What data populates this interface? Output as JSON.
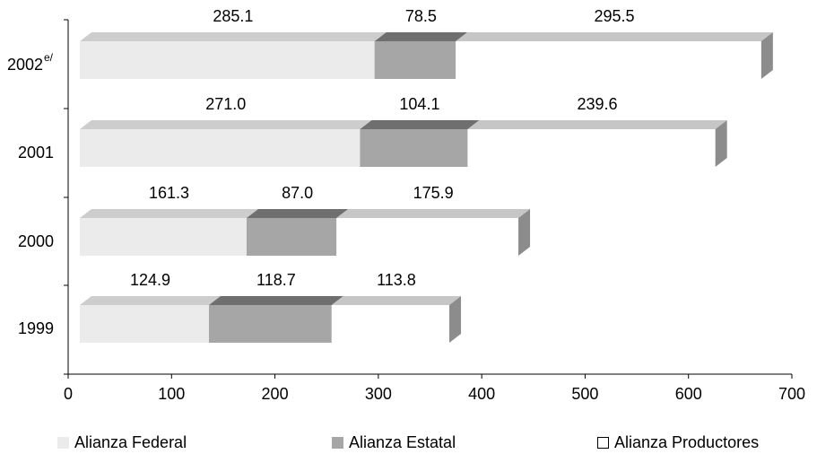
{
  "chart_data": {
    "type": "bar",
    "orientation": "horizontal",
    "stacked": true,
    "three_d": true,
    "categories": [
      "2002",
      "2001",
      "2000",
      "1999"
    ],
    "category_superscripts": [
      "e/",
      "",
      "",
      ""
    ],
    "series": [
      {
        "name": "Alianza Federal",
        "values": [
          285.1,
          271.0,
          161.3,
          124.9
        ],
        "labels": [
          "285.1",
          "271.0",
          "161.3",
          "124.9"
        ],
        "color": "#ebebeb"
      },
      {
        "name": "Alianza Estatal",
        "values": [
          78.5,
          104.1,
          87.0,
          118.7
        ],
        "labels": [
          "78.5",
          "104.1",
          "87.0",
          "118.7"
        ],
        "color": "#a6a6a6"
      },
      {
        "name": "Alianza Productores",
        "values": [
          295.5,
          239.6,
          175.9,
          113.8
        ],
        "labels": [
          "295.5",
          "239.6",
          "175.9",
          "113.8"
        ],
        "color": "#ffffff"
      }
    ],
    "xlim": [
      0,
      700
    ],
    "xticks": [
      0,
      100,
      200,
      300,
      400,
      500,
      600,
      700
    ],
    "grid": false,
    "legend_position": "bottom"
  }
}
